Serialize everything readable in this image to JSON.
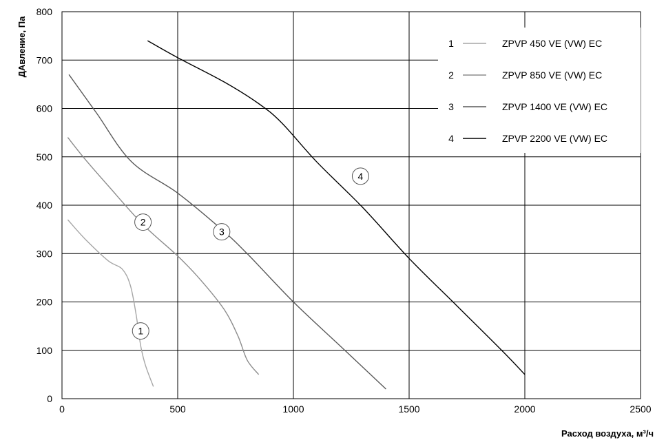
{
  "chart_data": {
    "type": "line",
    "xlabel": "Расход воздуха, м³/ч",
    "ylabel": "ДАвление, Па",
    "xlim": [
      0,
      2500
    ],
    "ylim": [
      0,
      800
    ],
    "x_ticks": [
      0,
      500,
      1000,
      1500,
      2000,
      2500
    ],
    "y_ticks": [
      0,
      100,
      200,
      300,
      400,
      500,
      600,
      700,
      800
    ],
    "grid": true,
    "legend_position": "top-right",
    "series": [
      {
        "id": "1",
        "name": "ZPVP 450 VE (VW) EC",
        "color": "#a6a6a6",
        "points": [
          [
            25,
            370
          ],
          [
            100,
            330
          ],
          [
            200,
            285
          ],
          [
            260,
            268
          ],
          [
            295,
            235
          ],
          [
            320,
            175
          ],
          [
            340,
            110
          ],
          [
            360,
            70
          ],
          [
            395,
            25
          ]
        ],
        "marker": {
          "label": "1",
          "x": 340,
          "y": 140
        }
      },
      {
        "id": "2",
        "name": "ZPVP 850 VE (VW) EC",
        "color": "#8c8c8c",
        "points": [
          [
            25,
            540
          ],
          [
            100,
            495
          ],
          [
            200,
            440
          ],
          [
            350,
            360
          ],
          [
            500,
            295
          ],
          [
            600,
            245
          ],
          [
            700,
            185
          ],
          [
            760,
            130
          ],
          [
            800,
            80
          ],
          [
            850,
            50
          ]
        ],
        "marker": {
          "label": "2",
          "x": 350,
          "y": 365
        }
      },
      {
        "id": "3",
        "name": "ZPVP 1400 VE (VW) EC",
        "color": "#595959",
        "points": [
          [
            30,
            670
          ],
          [
            150,
            590
          ],
          [
            300,
            490
          ],
          [
            500,
            425
          ],
          [
            690,
            350
          ],
          [
            800,
            300
          ],
          [
            1000,
            200
          ],
          [
            1200,
            110
          ],
          [
            1400,
            20
          ]
        ],
        "marker": {
          "label": "3",
          "x": 690,
          "y": 345
        }
      },
      {
        "id": "4",
        "name": "ZPVP 2200 VE (VW) EC",
        "color": "#000000",
        "points": [
          [
            370,
            740
          ],
          [
            500,
            705
          ],
          [
            700,
            655
          ],
          [
            850,
            610
          ],
          [
            950,
            570
          ],
          [
            1100,
            490
          ],
          [
            1300,
            395
          ],
          [
            1500,
            290
          ],
          [
            1700,
            195
          ],
          [
            1900,
            100
          ],
          [
            2000,
            50
          ]
        ],
        "marker": {
          "label": "4",
          "x": 1290,
          "y": 460
        }
      }
    ]
  }
}
